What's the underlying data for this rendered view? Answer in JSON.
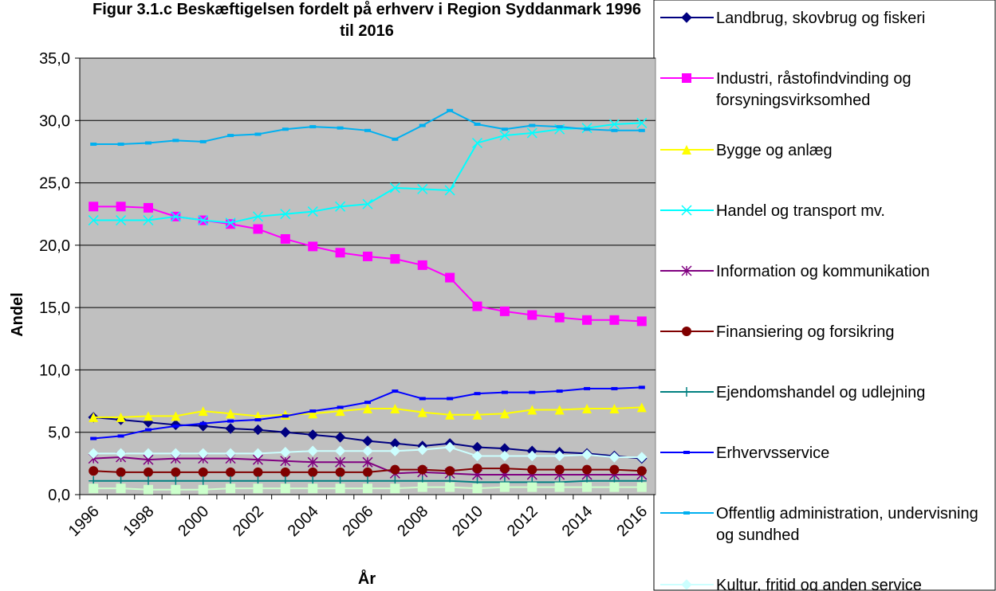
{
  "chart_data": {
    "type": "line",
    "title": "Figur 3.1.c Beskæftigelsen fordelt på erhverv i Region Syddanmark 1996 til 2016",
    "x_label": "År",
    "y_label": "Andel",
    "categories": [
      "1996",
      null,
      "1998",
      null,
      "2000",
      null,
      "2002",
      null,
      "2004",
      null,
      "2006",
      null,
      "2008",
      null,
      "2010",
      null,
      "2012",
      null,
      "2014",
      null,
      "2016"
    ],
    "ylim": [
      0,
      35
    ],
    "yticks": [
      {
        "value": 0,
        "label": "0,0"
      },
      {
        "value": 5,
        "label": "5,0"
      },
      {
        "value": 10,
        "label": "10,0"
      },
      {
        "value": 15,
        "label": "15,0"
      },
      {
        "value": 20,
        "label": "20,0"
      },
      {
        "value": 25,
        "label": "25,0"
      },
      {
        "value": 30,
        "label": "30,0"
      },
      {
        "value": 35,
        "label": "35,0"
      }
    ],
    "grid": true,
    "background": "#c0c0c0",
    "legend": "right",
    "series": [
      {
        "name": "Landbrug, skovbrug og fiskeri",
        "color": "#000080",
        "marker": "diamond",
        "values": [
          6.2,
          6.0,
          5.8,
          5.6,
          5.5,
          5.3,
          5.2,
          5.0,
          4.8,
          4.6,
          4.3,
          4.1,
          3.9,
          4.1,
          3.8,
          3.7,
          3.5,
          3.4,
          3.3,
          3.1,
          2.9
        ]
      },
      {
        "name": "Industri, råstofindvinding og forsyningsvirksomhed",
        "color": "#ff00ff",
        "marker": "square",
        "values": [
          23.1,
          23.1,
          23.0,
          22.3,
          22.0,
          21.7,
          21.3,
          20.5,
          19.9,
          19.4,
          19.1,
          18.9,
          18.4,
          17.4,
          15.1,
          14.7,
          14.4,
          14.2,
          14.0,
          14.0,
          13.9
        ]
      },
      {
        "name": "Bygge og anlæg",
        "color": "#ffff00",
        "marker": "triangle",
        "values": [
          6.2,
          6.2,
          6.3,
          6.3,
          6.7,
          6.5,
          6.3,
          6.4,
          6.5,
          6.7,
          6.9,
          6.9,
          6.6,
          6.4,
          6.4,
          6.5,
          6.8,
          6.8,
          6.9,
          6.9,
          7.0
        ]
      },
      {
        "name": "Handel og transport mv.",
        "color": "#00ffff",
        "marker": "x",
        "values": [
          22.0,
          22.0,
          22.0,
          22.3,
          22.0,
          21.8,
          22.3,
          22.5,
          22.7,
          23.1,
          23.3,
          24.6,
          24.5,
          24.4,
          28.2,
          28.8,
          29.0,
          29.3,
          29.4,
          29.7,
          29.8
        ]
      },
      {
        "name": "Information og kommunikation",
        "color": "#800080",
        "marker": "star",
        "values": [
          2.9,
          3.0,
          2.8,
          2.9,
          2.9,
          2.9,
          2.8,
          2.7,
          2.6,
          2.6,
          2.6,
          1.7,
          1.8,
          1.7,
          1.6,
          1.6,
          1.6,
          1.6,
          1.6,
          1.6,
          1.6
        ]
      },
      {
        "name": "Finansiering og forsikring",
        "color": "#800000",
        "marker": "circle",
        "values": [
          1.9,
          1.8,
          1.8,
          1.8,
          1.8,
          1.8,
          1.8,
          1.8,
          1.8,
          1.8,
          1.8,
          2.0,
          2.0,
          1.9,
          2.1,
          2.1,
          2.0,
          2.0,
          2.0,
          2.0,
          1.9
        ]
      },
      {
        "name": "Ejendomshandel og udlejning",
        "color": "#008080",
        "marker": "plus",
        "values": [
          1.1,
          1.1,
          1.1,
          1.1,
          1.1,
          1.1,
          1.1,
          1.1,
          1.1,
          1.1,
          1.1,
          1.1,
          1.1,
          1.1,
          1.0,
          1.0,
          1.0,
          1.0,
          1.1,
          1.1,
          1.1
        ]
      },
      {
        "name": "Erhvervsservice",
        "color": "#0000ff",
        "marker": "dash",
        "values": [
          4.5,
          4.7,
          5.2,
          5.5,
          5.7,
          5.9,
          6.0,
          6.3,
          6.7,
          7.0,
          7.4,
          8.3,
          7.7,
          7.7,
          8.1,
          8.2,
          8.2,
          8.3,
          8.5,
          8.5,
          8.6
        ]
      },
      {
        "name": "Offentlig administration, undervisning og sundhed",
        "color": "#00b0f0",
        "marker": "dash",
        "values": [
          28.1,
          28.1,
          28.2,
          28.4,
          28.3,
          28.8,
          28.9,
          29.3,
          29.5,
          29.4,
          29.2,
          28.5,
          29.6,
          30.8,
          29.7,
          29.3,
          29.6,
          29.5,
          29.3,
          29.2,
          29.2
        ]
      },
      {
        "name": "Kultur, fritid og anden service",
        "color": "#ccffff",
        "marker": "diamond",
        "values": [
          3.3,
          3.3,
          3.3,
          3.3,
          3.3,
          3.3,
          3.3,
          3.4,
          3.5,
          3.5,
          3.5,
          3.5,
          3.6,
          3.8,
          3.1,
          3.1,
          3.1,
          3.1,
          3.2,
          3.0,
          3.0
        ]
      },
      {
        "color": "#ccffcc",
        "marker": "square",
        "values": [
          0.5,
          0.5,
          0.4,
          0.4,
          0.4,
          0.5,
          0.5,
          0.5,
          0.5,
          0.5,
          0.5,
          0.5,
          0.6,
          0.6,
          0.5,
          0.6,
          0.6,
          0.6,
          0.6,
          0.6,
          0.6
        ]
      }
    ]
  }
}
